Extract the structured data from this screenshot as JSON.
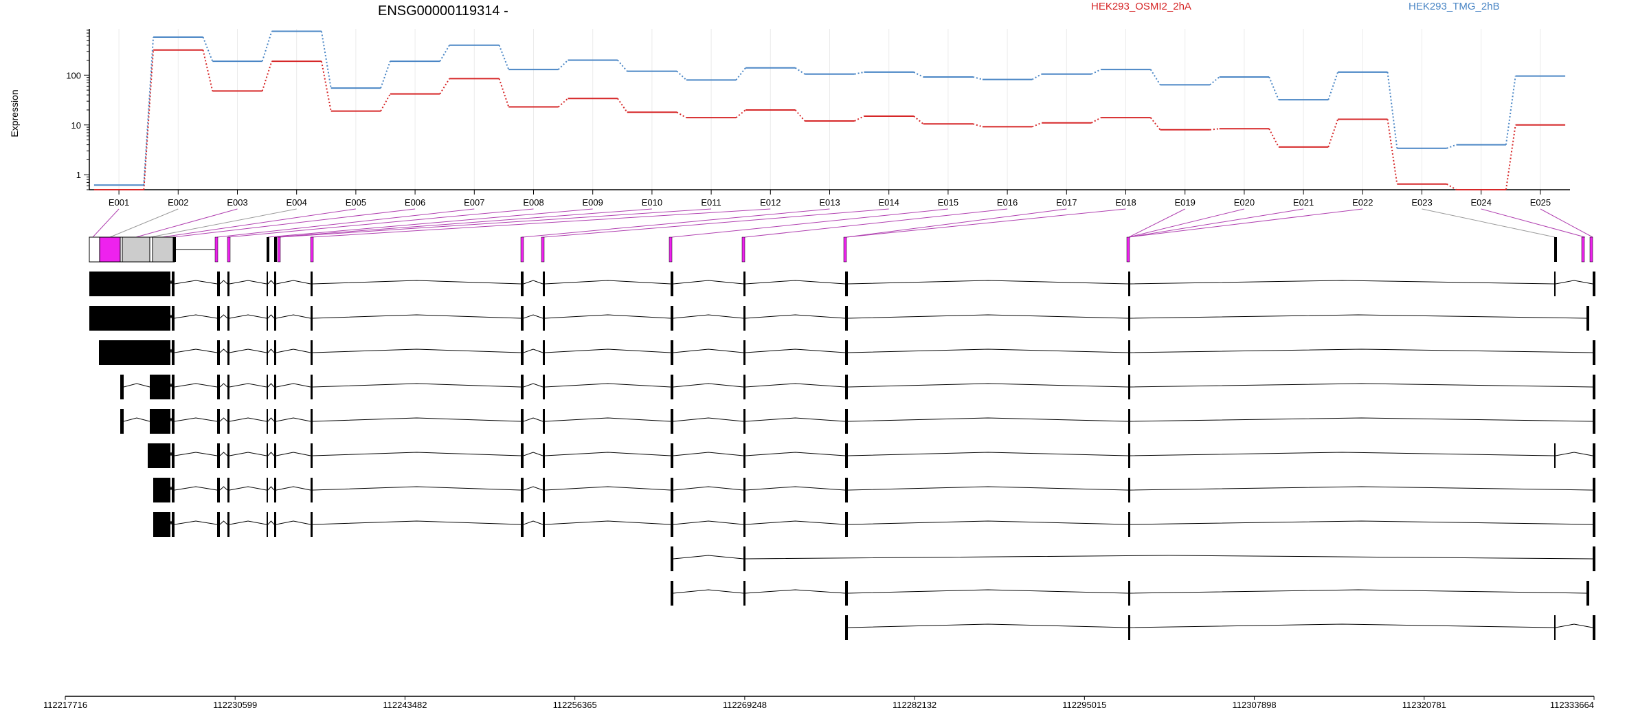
{
  "chart_data": {
    "type": "line",
    "title": "ENSG00000119314 -",
    "ylabel": "Expression",
    "y_scale": "log",
    "y_ticks": [
      1,
      10,
      100
    ],
    "ylim": [
      0.5,
      850
    ],
    "legend_placement": "top",
    "grid": "vertical gridlines at exon centers",
    "categories": [
      "E001",
      "E002",
      "E003",
      "E004",
      "E005",
      "E006",
      "E007",
      "E008",
      "E009",
      "E010",
      "E011",
      "E012",
      "E013",
      "E014",
      "E015",
      "E016",
      "E017",
      "E018",
      "E019",
      "E020",
      "E021",
      "E022",
      "E023",
      "E024",
      "E025"
    ],
    "series": [
      {
        "name": "HEK293_OSMI2_2hA",
        "color": "#d62728",
        "values": [
          0.5,
          320,
          48,
          190,
          19,
          42,
          85,
          23,
          34,
          18,
          14,
          20,
          12,
          15,
          10.5,
          9.2,
          11,
          14,
          8,
          8.4,
          3.6,
          13,
          0.65,
          0.5,
          10
        ]
      },
      {
        "name": "HEK293_TMG_2hB",
        "color": "#4a86c5",
        "values": [
          0.62,
          580,
          190,
          760,
          55,
          190,
          400,
          130,
          200,
          120,
          80,
          140,
          105,
          115,
          92,
          82,
          105,
          130,
          64,
          92,
          32,
          115,
          3.4,
          4,
          96
        ]
      }
    ],
    "exon_panel": {
      "exon_fill_colors": {
        "significant": "#ee22ee",
        "grey": "#cccccc",
        "plain": "#ffffff"
      },
      "genomic_ticks": [
        "112217716",
        "112230599",
        "112243482",
        "112256365",
        "112269248",
        "112282132",
        "112295015",
        "112307898",
        "112320781",
        "112333664"
      ],
      "transcript_count": 12
    }
  }
}
